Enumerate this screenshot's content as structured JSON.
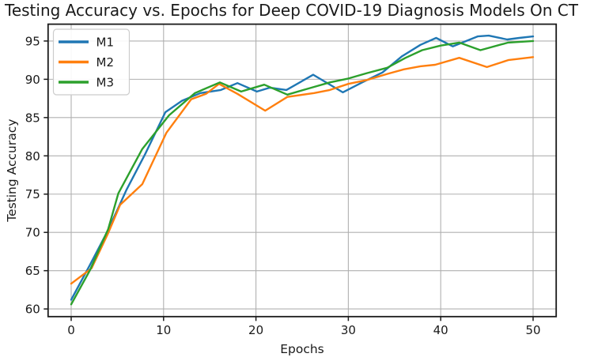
{
  "chart_data": {
    "type": "line",
    "title": "Testing Accuracy vs. Epochs for Deep COVID-19 Diagnosis Models On CT",
    "xlabel": "Epochs",
    "ylabel": "Testing Accuracy",
    "xlim": [
      -2.5,
      52.5
    ],
    "ylim": [
      59.0,
      97.2
    ],
    "xticks": [
      0,
      10,
      20,
      30,
      40,
      50
    ],
    "yticks": [
      60,
      65,
      70,
      75,
      80,
      85,
      90,
      95
    ],
    "grid": true,
    "grid_color": "#b0b0b0",
    "background_color": "#ffffff",
    "legend": {
      "position": "upper left",
      "entries": [
        "M1",
        "M2",
        "M3"
      ]
    },
    "series": [
      {
        "name": "M1",
        "color": "#1f77b4",
        "x": [
          0,
          2,
          4,
          6,
          8,
          10.2,
          12,
          14,
          16.2,
          18,
          20.1,
          21.5,
          23.3,
          26.2,
          29.4,
          31.5,
          33.7,
          35.8,
          37.8,
          39.5,
          41.3,
          44,
          45.2,
          47.2,
          48.5,
          50
        ],
        "y": [
          61.2,
          65.7,
          70.3,
          75.6,
          80.2,
          85.7,
          87.2,
          88.2,
          88.6,
          89.5,
          88.4,
          88.9,
          88.6,
          90.6,
          88.3,
          89.6,
          90.9,
          93.0,
          94.5,
          95.4,
          94.3,
          95.6,
          95.7,
          95.2,
          95.4,
          95.6
        ]
      },
      {
        "name": "M2",
        "color": "#ff7f0e",
        "x": [
          0,
          2.2,
          4,
          5.3,
          7.7,
          10.3,
          13,
          14.6,
          16,
          18,
          21,
          23.4,
          26.3,
          28,
          30,
          32,
          34.2,
          36,
          37.8,
          39.4,
          42,
          45,
          47.3,
          50
        ],
        "y": [
          63.3,
          65.3,
          69.9,
          73.6,
          76.3,
          83.0,
          87.4,
          88.1,
          89.4,
          88.1,
          85.9,
          87.7,
          88.2,
          88.6,
          89.4,
          89.9,
          90.7,
          91.3,
          91.7,
          91.9,
          92.8,
          91.6,
          92.5,
          92.9
        ]
      },
      {
        "name": "M3",
        "color": "#2ca02c",
        "x": [
          0,
          2,
          4,
          5.1,
          7.7,
          10.6,
          13.4,
          16.1,
          18.4,
          20.9,
          23.4,
          26,
          28,
          30,
          32,
          34.2,
          36.2,
          38,
          40,
          42,
          44.3,
          47.3,
          50
        ],
        "y": [
          60.6,
          65.0,
          70.4,
          75.1,
          80.9,
          85.3,
          88.2,
          89.6,
          88.4,
          89.3,
          88.0,
          88.9,
          89.6,
          90.1,
          90.8,
          91.5,
          92.8,
          93.8,
          94.4,
          94.8,
          93.8,
          94.8,
          95.0
        ]
      }
    ]
  }
}
